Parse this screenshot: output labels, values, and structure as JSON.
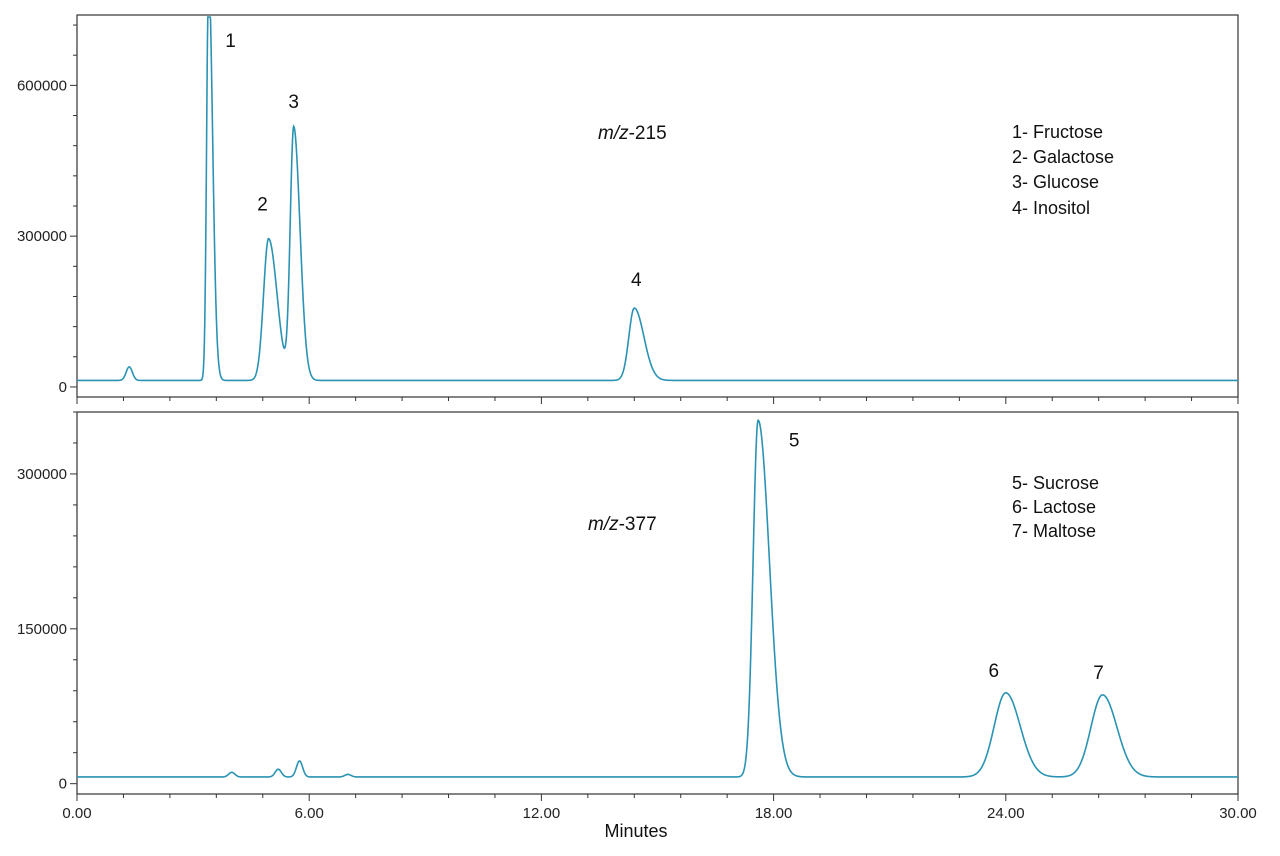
{
  "chart_data": [
    {
      "type": "line",
      "xlabel": "",
      "ylabel": "",
      "xlim": [
        0,
        30
      ],
      "ylim": [
        -20000,
        740000
      ],
      "y_ticks": [
        0,
        300000,
        600000
      ],
      "y_tick_labels": [
        "0",
        "300000",
        "600000"
      ],
      "annotation": {
        "prefix": "m/z",
        "suffix": "-215"
      },
      "legend": [
        "1- Fructose",
        "2- Galactose",
        "3- Glucose",
        "4- Inositol"
      ],
      "legend_position": "top-right",
      "color": "#2a93b3",
      "baseline": 13000,
      "peaks": [
        {
          "label": "1",
          "name": "Fructose",
          "x": 3.4,
          "y": 820000
        },
        {
          "label": "2",
          "name": "Galactose",
          "x": 4.95,
          "y": 295000
        },
        {
          "label": "3",
          "name": "Glucose",
          "x": 5.6,
          "y": 515000
        },
        {
          "label": "4",
          "name": "Inositol",
          "x": 14.4,
          "y": 157000
        }
      ],
      "minor_features": [
        {
          "x": 1.35,
          "y": 40000
        }
      ]
    },
    {
      "type": "line",
      "xlabel": "Minutes",
      "ylabel": "",
      "xlim": [
        0,
        30
      ],
      "ylim": [
        -10000,
        360000
      ],
      "x_ticks": [
        0,
        6,
        12,
        18,
        24,
        30
      ],
      "x_tick_labels": [
        "0.00",
        "6.00",
        "12.00",
        "18.00",
        "24.00",
        "30.00"
      ],
      "y_ticks": [
        0,
        150000,
        300000
      ],
      "y_tick_labels": [
        "0",
        "150000",
        "300000"
      ],
      "annotation": {
        "prefix": "m/z",
        "suffix": "-377"
      },
      "legend": [
        "5- Sucrose",
        "6- Lactose",
        "7- Maltose"
      ],
      "legend_position": "top-right",
      "color": "#2a93b3",
      "baseline": 6500,
      "peaks": [
        {
          "label": "5",
          "name": "Sucrose",
          "x": 17.6,
          "y": 352000
        },
        {
          "label": "6",
          "name": "Lactose",
          "x": 24.0,
          "y": 88000
        },
        {
          "label": "7",
          "name": "Maltose",
          "x": 26.5,
          "y": 86000
        }
      ],
      "minor_features": [
        {
          "x": 4.0,
          "y": 11000
        },
        {
          "x": 5.2,
          "y": 14000
        },
        {
          "x": 5.75,
          "y": 22000
        },
        {
          "x": 7.0,
          "y": 9000
        }
      ]
    }
  ]
}
